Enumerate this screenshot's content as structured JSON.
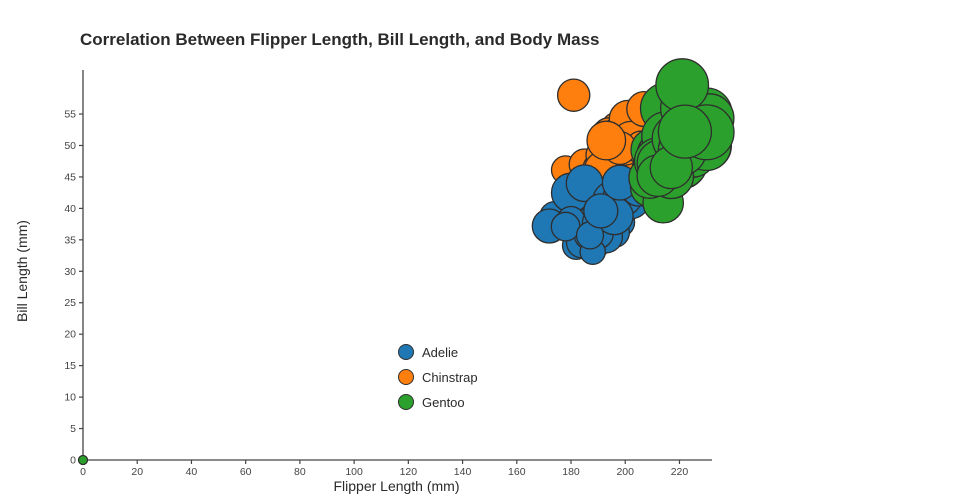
{
  "title": "Correlation Between Flipper Length, Bill Length, and Body Mass",
  "axes": {
    "xlabel": "Flipper Length (mm)",
    "ylabel": "Bill Length (mm)",
    "x_ticks": [
      0,
      20,
      40,
      60,
      80,
      100,
      120,
      140,
      160,
      180,
      200,
      220
    ],
    "y_ticks": [
      0,
      5,
      10,
      15,
      20,
      25,
      30,
      35,
      40,
      45,
      50,
      55
    ],
    "xlim": [
      0,
      232
    ],
    "ylim": [
      0,
      62
    ]
  },
  "legend": {
    "items": [
      {
        "label": "Adelie",
        "color": "#1f77b4"
      },
      {
        "label": "Chinstrap",
        "color": "#ff7f0e"
      },
      {
        "label": "Gentoo",
        "color": "#2ca02c"
      }
    ]
  },
  "chart_data": {
    "type": "scatter",
    "subtype": "bubble",
    "title": "Correlation Between Flipper Length, Bill Length, and Body Mass",
    "xlabel": "Flipper Length (mm)",
    "ylabel": "Bill Length (mm)",
    "size_dimension": "body_mass_g",
    "size_scale": "radius_px = body_mass_g / 230; null mass -> 4.5px",
    "xlim": [
      0,
      232
    ],
    "ylim": [
      0,
      62
    ],
    "grid": false,
    "legend_position": "inside-bottom-center",
    "draw_order": [
      "Chinstrap",
      "Adelie",
      "Gentoo"
    ],
    "edge_color": "#2e2e2e",
    "series": [
      {
        "name": "Adelie",
        "color": "#1f77b4",
        "points": [
          [
            181,
            39.1,
            3750
          ],
          [
            186,
            39.5,
            3800
          ],
          [
            195,
            40.3,
            3250
          ],
          [
            193,
            36.7,
            3450
          ],
          [
            190,
            39.3,
            3650
          ],
          [
            181,
            38.9,
            3625
          ],
          [
            195,
            39.2,
            4675
          ],
          [
            182,
            34.1,
            3200
          ],
          [
            191,
            42.0,
            4250
          ],
          [
            198,
            37.8,
            3400
          ],
          [
            185,
            37.8,
            3700
          ],
          [
            195,
            41.1,
            4500
          ],
          [
            197,
            38.6,
            3325
          ],
          [
            184,
            34.6,
            3550
          ],
          [
            194,
            36.6,
            3900
          ],
          [
            174,
            38.7,
            3450
          ],
          [
            180,
            42.5,
            4475
          ],
          [
            189,
            34.4,
            3325
          ],
          [
            185,
            44.0,
            4200
          ],
          [
            180,
            37.8,
            3500
          ],
          [
            183,
            37.7,
            3075
          ],
          [
            187,
            35.9,
            3650
          ],
          [
            172,
            37.2,
            3900
          ],
          [
            180,
            38.1,
            3175
          ],
          [
            178,
            37.1,
            3300
          ],
          [
            195,
            41.3,
            4300
          ],
          [
            196,
            36.2,
            3450
          ],
          [
            190,
            37.7,
            3600
          ],
          [
            200,
            40.6,
            3850
          ],
          [
            193,
            35.5,
            3700
          ],
          [
            210,
            42.2,
            4150
          ],
          [
            202,
            41.4,
            4400
          ],
          [
            190,
            36.0,
            3500
          ],
          [
            199,
            41.8,
            4450
          ],
          [
            188,
            33.1,
            2900
          ],
          [
            205,
            43.2,
            4100
          ],
          [
            196,
            38.8,
            4300
          ],
          [
            187,
            35.7,
            3100
          ],
          [
            191,
            39.6,
            3900
          ],
          [
            198,
            44.1,
            4000
          ]
        ]
      },
      {
        "name": "Chinstrap",
        "color": "#ff7f0e",
        "points": [
          [
            192,
            46.5,
            3500
          ],
          [
            196,
            50.0,
            3900
          ],
          [
            193,
            51.3,
            3650
          ],
          [
            188,
            45.4,
            3525
          ],
          [
            197,
            52.7,
            3725
          ],
          [
            198,
            45.2,
            3950
          ],
          [
            178,
            46.1,
            3250
          ],
          [
            197,
            51.3,
            4150
          ],
          [
            195,
            46.0,
            3400
          ],
          [
            198,
            51.3,
            3775
          ],
          [
            193,
            46.6,
            3450
          ],
          [
            194,
            51.7,
            3900
          ],
          [
            185,
            47.0,
            3550
          ],
          [
            201,
            52.0,
            4050
          ],
          [
            190,
            45.9,
            3300
          ],
          [
            201,
            50.5,
            4000
          ],
          [
            197,
            50.3,
            3700
          ],
          [
            181,
            58.0,
            3700
          ],
          [
            190,
            46.4,
            3450
          ],
          [
            195,
            49.2,
            4050
          ],
          [
            181,
            42.4,
            3450
          ],
          [
            191,
            48.5,
            3400
          ],
          [
            187,
            43.2,
            3100
          ],
          [
            193,
            50.6,
            3800
          ],
          [
            195,
            46.7,
            3350
          ],
          [
            197,
            52.0,
            3450
          ],
          [
            200,
            50.5,
            3800
          ],
          [
            200,
            49.5,
            3800
          ],
          [
            191,
            46.4,
            3650
          ],
          [
            205,
            52.8,
            4550
          ],
          [
            187,
            40.9,
            3200
          ],
          [
            201,
            54.2,
            4300
          ],
          [
            203,
            42.5,
            3350
          ],
          [
            202,
            51.0,
            4100
          ],
          [
            206,
            49.7,
            3775
          ],
          [
            207,
            55.8,
            4000
          ],
          [
            210,
            43.5,
            3400
          ],
          [
            198,
            49.6,
            3775
          ],
          [
            193,
            50.8,
            4450
          ],
          [
            210,
            50.2,
            3775
          ]
        ]
      },
      {
        "name": "Gentoo",
        "color": "#2ca02c",
        "points": [
          [
            0,
            0,
            null
          ],
          [
            211,
            46.1,
            4500
          ],
          [
            230,
            50.0,
            5700
          ],
          [
            210,
            48.7,
            4450
          ],
          [
            218,
            50.0,
            5700
          ],
          [
            215,
            47.6,
            5400
          ],
          [
            210,
            46.5,
            4550
          ],
          [
            211,
            45.4,
            4800
          ],
          [
            219,
            46.7,
            5200
          ],
          [
            209,
            43.3,
            4400
          ],
          [
            215,
            46.8,
            5150
          ],
          [
            214,
            40.9,
            4650
          ],
          [
            216,
            49.0,
            5550
          ],
          [
            213,
            45.5,
            4650
          ],
          [
            210,
            48.4,
            4400
          ],
          [
            217,
            45.8,
            4600
          ],
          [
            210,
            49.3,
            4925
          ],
          [
            221,
            47.0,
            5600
          ],
          [
            209,
            44.9,
            4750
          ],
          [
            222,
            48.4,
            5950
          ],
          [
            218,
            49.0,
            5700
          ],
          [
            215,
            51.1,
            5500
          ],
          [
            213,
            48.5,
            5400
          ],
          [
            215,
            55.9,
            5850
          ],
          [
            215,
            47.8,
            5700
          ],
          [
            215,
            46.2,
            5300
          ],
          [
            216,
            49.1,
            5500
          ],
          [
            230,
            55.1,
            5850
          ],
          [
            217,
            48.8,
            5950
          ],
          [
            221,
            47.2,
            5750
          ],
          [
            222,
            49.5,
            6050
          ],
          [
            214,
            48.6,
            5800
          ],
          [
            215,
            51.5,
            5550
          ],
          [
            222,
            55.9,
            5600
          ],
          [
            212,
            47.5,
            5350
          ],
          [
            213,
            47.2,
            5350
          ],
          [
            219,
            50.4,
            5250
          ],
          [
            224,
            48.6,
            5350
          ],
          [
            219,
            51.1,
            5650
          ],
          [
            225,
            48.7,
            5350
          ],
          [
            231,
            54.3,
            5650
          ],
          [
            229,
            50.5,
            5550
          ],
          [
            223,
            49.8,
            5700
          ],
          [
            221,
            49.5,
            5400
          ],
          [
            221,
            59.6,
            6050
          ],
          [
            230,
            49.9,
            5600
          ],
          [
            223,
            51.3,
            5650
          ],
          [
            217,
            45.1,
            5100
          ],
          [
            212,
            45.2,
            4750
          ],
          [
            221,
            49.1,
            5500
          ],
          [
            217,
            46.5,
            4850
          ],
          [
            230,
            52.1,
            6300
          ],
          [
            222,
            52.2,
            6100
          ]
        ]
      }
    ]
  }
}
